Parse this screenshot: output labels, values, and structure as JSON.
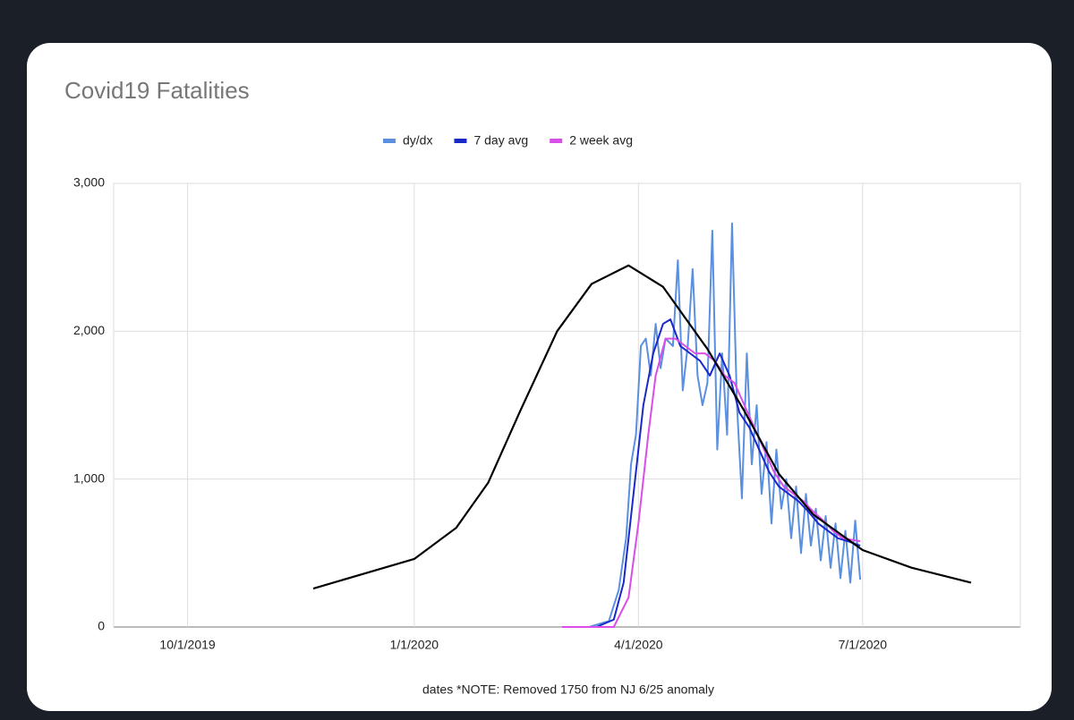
{
  "chart_data": {
    "type": "line",
    "title": "Covid19 Fatalities",
    "x_label": "dates *NOTE: Removed 1750 from NJ 6/25 anomaly",
    "xlim": [
      "9/1/2019",
      "9/3/2020"
    ],
    "xticks": [
      "10/1/2019",
      "1/1/2020",
      "4/1/2020",
      "7/1/2020"
    ],
    "ylim": [
      0,
      3000
    ],
    "yticks": [
      0,
      {
        "value": 1000,
        "label": "1,000"
      },
      {
        "value": 2000,
        "label": "2,000"
      },
      {
        "value": 3000,
        "label": "3,000"
      }
    ],
    "grid": true,
    "legend": "top",
    "series": [
      {
        "name": "dy/dx",
        "color": "#5b8fdf",
        "x": [
          "3/1/2020",
          "3/12/2020",
          "3/20/2020",
          "3/24/2020",
          "3/27/2020",
          "3/29/2020",
          "3/31/2020",
          "4/2/2020",
          "4/4/2020",
          "4/6/2020",
          "4/8/2020",
          "4/10/2020",
          "4/12/2020",
          "4/15/2020",
          "4/17/2020",
          "4/19/2020",
          "4/21/2020",
          "4/23/2020",
          "4/25/2020",
          "4/27/2020",
          "4/29/2020",
          "5/1/2020",
          "5/3/2020",
          "5/5/2020",
          "5/7/2020",
          "5/9/2020",
          "5/11/2020",
          "5/13/2020",
          "5/15/2020",
          "5/17/2020",
          "5/19/2020",
          "5/21/2020",
          "5/23/2020",
          "5/25/2020",
          "5/27/2020",
          "5/29/2020",
          "5/31/2020",
          "6/2/2020",
          "6/4/2020",
          "6/6/2020",
          "6/8/2020",
          "6/10/2020",
          "6/12/2020",
          "6/14/2020",
          "6/16/2020",
          "6/18/2020",
          "6/20/2020",
          "6/22/2020",
          "6/24/2020",
          "6/26/2020",
          "6/28/2020",
          "6/30/2020"
        ],
        "values": [
          0,
          0,
          40,
          250,
          600,
          1100,
          1300,
          1900,
          1950,
          1700,
          2050,
          1750,
          1950,
          1900,
          2480,
          1600,
          1900,
          2420,
          1700,
          1500,
          1650,
          2680,
          1200,
          1850,
          1300,
          2730,
          1500,
          870,
          1850,
          1100,
          1500,
          900,
          1250,
          700,
          1200,
          800,
          1000,
          600,
          950,
          500,
          900,
          550,
          800,
          450,
          750,
          400,
          700,
          330,
          650,
          300,
          720,
          320
        ]
      },
      {
        "name": "7 day avg",
        "color": "#1a28c8",
        "x": [
          "3/15/2020",
          "3/22/2020",
          "3/26/2020",
          "3/30/2020",
          "4/3/2020",
          "4/7/2020",
          "4/11/2020",
          "4/14/2020",
          "4/18/2020",
          "4/22/2020",
          "4/26/2020",
          "4/30/2020",
          "5/4/2020",
          "5/8/2020",
          "5/12/2020",
          "5/16/2020",
          "5/20/2020",
          "5/24/2020",
          "5/28/2020",
          "6/1/2020",
          "6/5/2020",
          "6/9/2020",
          "6/13/2020",
          "6/17/2020",
          "6/21/2020",
          "6/25/2020",
          "6/30/2020"
        ],
        "values": [
          0,
          50,
          300,
          900,
          1500,
          1850,
          2050,
          2080,
          1900,
          1850,
          1800,
          1700,
          1850,
          1700,
          1450,
          1350,
          1200,
          1050,
          950,
          900,
          850,
          780,
          700,
          650,
          600,
          580,
          550
        ]
      },
      {
        "name": "2 week avg",
        "color": "#d94ee8",
        "x": [
          "3/1/2020",
          "3/22/2020",
          "3/28/2020",
          "4/1/2020",
          "4/5/2020",
          "4/8/2020",
          "4/12/2020",
          "4/16/2020",
          "4/20/2020",
          "4/24/2020",
          "4/28/2020",
          "5/2/2020",
          "5/6/2020",
          "5/10/2020",
          "5/14/2020",
          "5/18/2020",
          "5/22/2020",
          "5/26/2020",
          "5/30/2020",
          "6/3/2020",
          "6/7/2020",
          "6/11/2020",
          "6/15/2020",
          "6/19/2020",
          "6/23/2020",
          "6/30/2020"
        ],
        "values": [
          0,
          0,
          200,
          700,
          1300,
          1700,
          1950,
          1950,
          1900,
          1850,
          1850,
          1800,
          1700,
          1650,
          1500,
          1350,
          1200,
          1050,
          950,
          900,
          850,
          780,
          720,
          650,
          600,
          580
        ]
      },
      {
        "color": "#000000",
        "x": [
          "11/21/2019",
          "1/1/2020",
          "1/18/2020",
          "1/31/2020",
          "2/13/2020",
          "2/28/2020",
          "3/13/2020",
          "3/28/2020",
          "4/11/2020",
          "4/29/2020",
          "5/14/2020",
          "5/28/2020",
          "6/11/2020",
          "7/1/2020",
          "7/21/2020",
          "8/14/2020"
        ],
        "values": [
          260,
          460,
          670,
          975,
          1460,
          2000,
          2320,
          2445,
          2300,
          1880,
          1460,
          1035,
          760,
          520,
          400,
          300
        ]
      }
    ]
  }
}
